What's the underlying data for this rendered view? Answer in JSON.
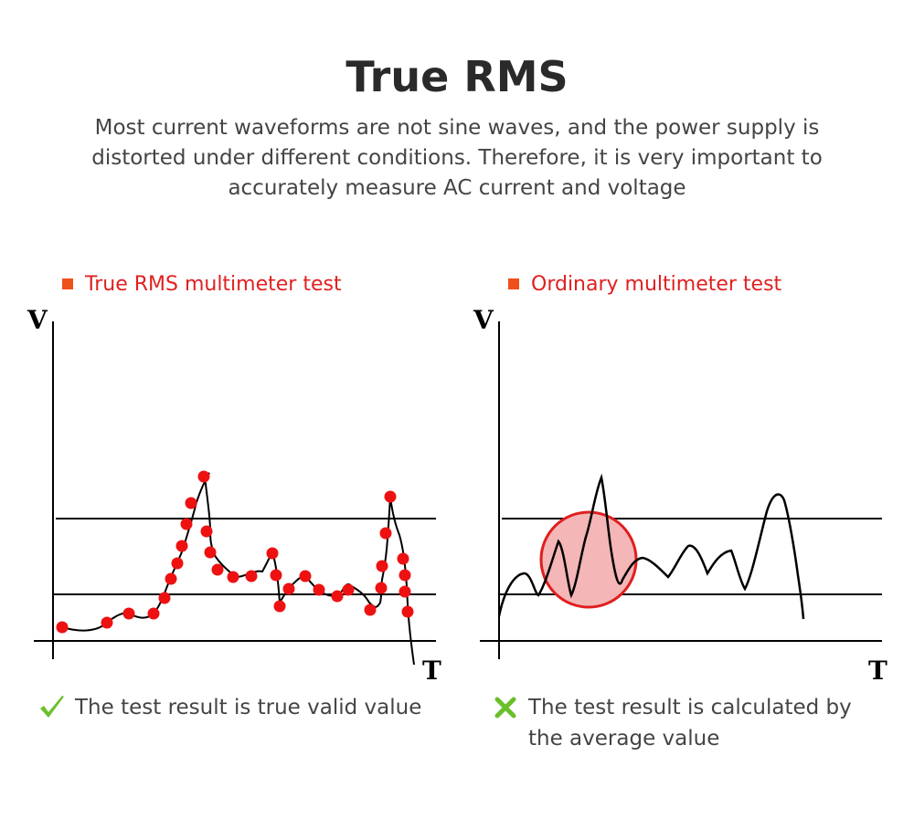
{
  "header": {
    "title": "True RMS",
    "subtitle": "Most current waveforms are not sine waves, and the power supply is distorted under different conditions. Therefore, it is very important to accurately measure AC current and voltage"
  },
  "panels": [
    {
      "legend_label": "True RMS multimeter test",
      "y_axis_label": "V",
      "x_axis_label": "T",
      "result_text": "The test result is true valid value",
      "result_icon": "check-icon"
    },
    {
      "legend_label": "Ordinary multimeter test",
      "y_axis_label": "V",
      "x_axis_label": "T",
      "result_text": "The test result is calculated by the average value",
      "result_icon": "cross-icon"
    }
  ],
  "colors": {
    "accent_red": "#e02020",
    "legend_square": "#f0501a",
    "sample_dot": "#ee1111",
    "highlight_circle_fill": "#f4b6b6",
    "highlight_circle_stroke": "#e01e1e",
    "check_green": "#6abf2a"
  }
}
